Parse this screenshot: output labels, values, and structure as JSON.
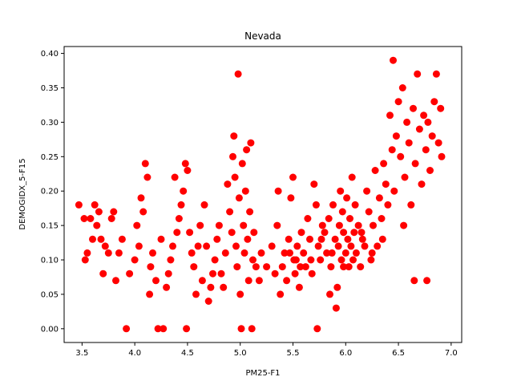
{
  "chart_data": {
    "type": "scatter",
    "title": "Nevada",
    "xlabel": "PM25-F1",
    "ylabel": "DEMOGIDX_5-F15",
    "xlim": [
      3.33,
      7.1
    ],
    "ylim": [
      -0.02,
      0.41
    ],
    "xticks": [
      3.5,
      4.0,
      4.5,
      5.0,
      5.5,
      6.0,
      6.5,
      7.0
    ],
    "xtick_labels": [
      "3.5",
      "4.0",
      "4.5",
      "5.0",
      "5.5",
      "6.0",
      "6.5",
      "7.0"
    ],
    "yticks": [
      0.0,
      0.05,
      0.1,
      0.15,
      0.2,
      0.25,
      0.3,
      0.35,
      0.4
    ],
    "ytick_labels": [
      "0.00",
      "0.05",
      "0.10",
      "0.15",
      "0.20",
      "0.25",
      "0.30",
      "0.35",
      "0.40"
    ],
    "marker_color": "#ff0000",
    "grid": false,
    "points": [
      [
        3.47,
        0.18
      ],
      [
        3.52,
        0.16
      ],
      [
        3.53,
        0.1
      ],
      [
        3.55,
        0.11
      ],
      [
        3.58,
        0.16
      ],
      [
        3.6,
        0.13
      ],
      [
        3.62,
        0.18
      ],
      [
        3.64,
        0.15
      ],
      [
        3.66,
        0.17
      ],
      [
        3.68,
        0.13
      ],
      [
        3.7,
        0.08
      ],
      [
        3.72,
        0.12
      ],
      [
        3.75,
        0.11
      ],
      [
        3.78,
        0.16
      ],
      [
        3.8,
        0.17
      ],
      [
        3.82,
        0.07
      ],
      [
        3.85,
        0.11
      ],
      [
        3.88,
        0.13
      ],
      [
        3.92,
        0.0
      ],
      [
        3.95,
        0.08
      ],
      [
        4.0,
        0.1
      ],
      [
        4.02,
        0.15
      ],
      [
        4.04,
        0.12
      ],
      [
        4.06,
        0.19
      ],
      [
        4.08,
        0.17
      ],
      [
        4.1,
        0.24
      ],
      [
        4.12,
        0.22
      ],
      [
        4.14,
        0.05
      ],
      [
        4.15,
        0.09
      ],
      [
        4.17,
        0.11
      ],
      [
        4.2,
        0.07
      ],
      [
        4.22,
        0.0
      ],
      [
        4.25,
        0.13
      ],
      [
        4.27,
        0.0
      ],
      [
        4.3,
        0.06
      ],
      [
        4.32,
        0.08
      ],
      [
        4.34,
        0.1
      ],
      [
        4.36,
        0.12
      ],
      [
        4.38,
        0.22
      ],
      [
        4.4,
        0.14
      ],
      [
        4.42,
        0.16
      ],
      [
        4.44,
        0.18
      ],
      [
        4.46,
        0.2
      ],
      [
        4.48,
        0.24
      ],
      [
        4.5,
        0.23
      ],
      [
        4.49,
        0.0
      ],
      [
        4.52,
        0.14
      ],
      [
        4.54,
        0.11
      ],
      [
        4.56,
        0.09
      ],
      [
        4.58,
        0.05
      ],
      [
        4.6,
        0.12
      ],
      [
        4.62,
        0.15
      ],
      [
        4.64,
        0.07
      ],
      [
        4.66,
        0.18
      ],
      [
        4.68,
        0.12
      ],
      [
        4.7,
        0.04
      ],
      [
        4.72,
        0.06
      ],
      [
        4.74,
        0.08
      ],
      [
        4.76,
        0.1
      ],
      [
        4.78,
        0.13
      ],
      [
        4.8,
        0.15
      ],
      [
        4.82,
        0.08
      ],
      [
        4.84,
        0.06
      ],
      [
        4.86,
        0.11
      ],
      [
        4.88,
        0.21
      ],
      [
        4.9,
        0.17
      ],
      [
        4.92,
        0.14
      ],
      [
        4.93,
        0.25
      ],
      [
        4.94,
        0.28
      ],
      [
        4.95,
        0.22
      ],
      [
        4.96,
        0.12
      ],
      [
        4.97,
        0.09
      ],
      [
        4.98,
        0.37
      ],
      [
        4.99,
        0.19
      ],
      [
        5.0,
        0.05
      ],
      [
        5.01,
        0.0
      ],
      [
        5.02,
        0.24
      ],
      [
        5.03,
        0.15
      ],
      [
        5.04,
        0.11
      ],
      [
        5.05,
        0.2
      ],
      [
        5.06,
        0.26
      ],
      [
        5.07,
        0.13
      ],
      [
        5.08,
        0.07
      ],
      [
        5.09,
        0.17
      ],
      [
        5.1,
        0.27
      ],
      [
        5.11,
        0.0
      ],
      [
        5.12,
        0.1
      ],
      [
        5.13,
        0.14
      ],
      [
        5.15,
        0.09
      ],
      [
        5.18,
        0.07
      ],
      [
        5.2,
        0.11
      ],
      [
        5.25,
        0.09
      ],
      [
        5.3,
        0.12
      ],
      [
        5.33,
        0.08
      ],
      [
        5.35,
        0.15
      ],
      [
        5.36,
        0.2
      ],
      [
        5.38,
        0.05
      ],
      [
        5.4,
        0.09
      ],
      [
        5.42,
        0.11
      ],
      [
        5.44,
        0.07
      ],
      [
        5.46,
        0.13
      ],
      [
        5.48,
        0.19
      ],
      [
        5.5,
        0.22
      ],
      [
        5.51,
        0.1
      ],
      [
        5.52,
        0.08
      ],
      [
        5.54,
        0.12
      ],
      [
        5.56,
        0.06
      ],
      [
        5.58,
        0.14
      ],
      [
        5.6,
        0.11
      ],
      [
        5.62,
        0.09
      ],
      [
        5.64,
        0.16
      ],
      [
        5.66,
        0.13
      ],
      [
        5.68,
        0.08
      ],
      [
        5.7,
        0.21
      ],
      [
        5.72,
        0.18
      ],
      [
        5.73,
        0.0
      ],
      [
        5.74,
        0.12
      ],
      [
        5.76,
        0.1
      ],
      [
        5.78,
        0.15
      ],
      [
        5.8,
        0.14
      ],
      [
        5.82,
        0.11
      ],
      [
        5.84,
        0.16
      ],
      [
        5.85,
        0.05
      ],
      [
        5.86,
        0.09
      ],
      [
        5.88,
        0.18
      ],
      [
        5.9,
        0.13
      ],
      [
        5.91,
        0.03
      ],
      [
        5.92,
        0.06
      ],
      [
        5.93,
        0.12
      ],
      [
        5.94,
        0.15
      ],
      [
        5.95,
        0.2
      ],
      [
        5.96,
        0.1
      ],
      [
        5.97,
        0.17
      ],
      [
        5.98,
        0.14
      ],
      [
        6.0,
        0.11
      ],
      [
        6.01,
        0.19
      ],
      [
        6.02,
        0.13
      ],
      [
        6.03,
        0.09
      ],
      [
        6.04,
        0.16
      ],
      [
        6.05,
        0.12
      ],
      [
        6.06,
        0.22
      ],
      [
        6.07,
        0.1
      ],
      [
        6.08,
        0.14
      ],
      [
        6.09,
        0.18
      ],
      [
        6.1,
        0.11
      ],
      [
        6.12,
        0.15
      ],
      [
        6.14,
        0.09
      ],
      [
        6.16,
        0.13
      ],
      [
        6.18,
        0.12
      ],
      [
        6.2,
        0.2
      ],
      [
        6.22,
        0.17
      ],
      [
        6.24,
        0.1
      ],
      [
        6.26,
        0.15
      ],
      [
        6.28,
        0.23
      ],
      [
        6.3,
        0.12
      ],
      [
        6.32,
        0.19
      ],
      [
        6.34,
        0.16
      ],
      [
        6.36,
        0.24
      ],
      [
        6.38,
        0.21
      ],
      [
        6.4,
        0.18
      ],
      [
        6.42,
        0.31
      ],
      [
        6.44,
        0.26
      ],
      [
        6.45,
        0.39
      ],
      [
        6.46,
        0.2
      ],
      [
        6.48,
        0.28
      ],
      [
        6.5,
        0.33
      ],
      [
        6.52,
        0.25
      ],
      [
        6.54,
        0.35
      ],
      [
        6.56,
        0.22
      ],
      [
        6.58,
        0.3
      ],
      [
        6.6,
        0.27
      ],
      [
        6.62,
        0.18
      ],
      [
        6.64,
        0.32
      ],
      [
        6.65,
        0.07
      ],
      [
        6.66,
        0.24
      ],
      [
        6.68,
        0.37
      ],
      [
        6.7,
        0.29
      ],
      [
        6.72,
        0.21
      ],
      [
        6.74,
        0.31
      ],
      [
        6.76,
        0.26
      ],
      [
        6.77,
        0.07
      ],
      [
        6.78,
        0.3
      ],
      [
        6.8,
        0.23
      ],
      [
        6.82,
        0.28
      ],
      [
        6.84,
        0.33
      ],
      [
        6.86,
        0.37
      ],
      [
        6.88,
        0.27
      ],
      [
        6.9,
        0.32
      ],
      [
        6.91,
        0.25
      ],
      [
        6.55,
        0.15
      ],
      [
        6.35,
        0.13
      ],
      [
        6.25,
        0.11
      ],
      [
        6.15,
        0.14
      ],
      [
        5.98,
        0.09
      ],
      [
        5.87,
        0.11
      ],
      [
        5.77,
        0.13
      ],
      [
        5.67,
        0.1
      ],
      [
        5.57,
        0.09
      ],
      [
        5.47,
        0.11
      ],
      [
        5.53,
        0.1
      ]
    ]
  }
}
